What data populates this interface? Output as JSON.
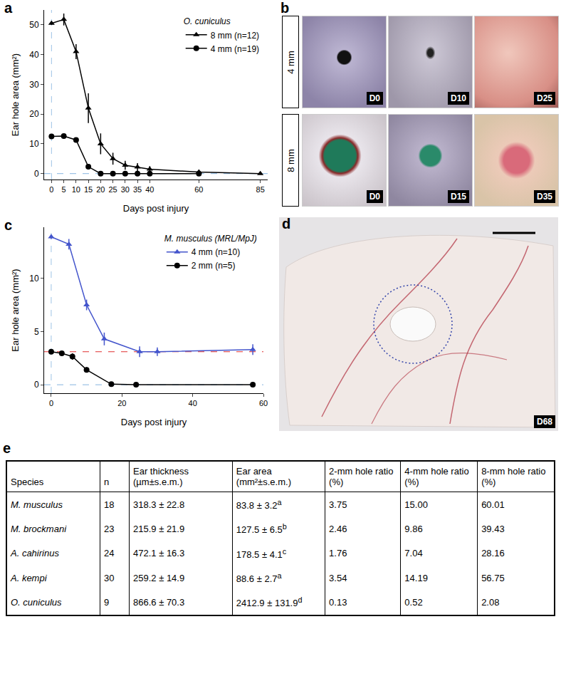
{
  "chart_data": [
    {
      "label": "a",
      "type": "line",
      "legend_title": "O. cuniculus",
      "x_label": "Days post injury",
      "y_label": "Ear hole area (mm²)",
      "xlim": [
        -3,
        88
      ],
      "xticks": [
        0,
        5,
        10,
        15,
        20,
        25,
        30,
        35,
        40,
        60,
        85
      ],
      "ylim": [
        -2,
        55
      ],
      "yticks": [
        0,
        10,
        20,
        30,
        40,
        50
      ],
      "grid": false,
      "legend": "top right",
      "reference_lines": [
        {
          "axis": "x",
          "value": 0,
          "color": "#9ec3e6",
          "line_style": "dash"
        },
        {
          "axis": "y",
          "value": 0,
          "color": "#9ec3e6",
          "line_style": "dash"
        }
      ],
      "series": [
        {
          "name": "8 mm (n=12)",
          "color": "#000000",
          "marker": "triangle-up",
          "x": [
            0,
            5,
            10,
            15,
            20,
            25,
            30,
            35,
            40,
            60,
            85
          ],
          "values": [
            50.5,
            51.8,
            41,
            22,
            10,
            5,
            2.8,
            2.2,
            1.5,
            0.5,
            0
          ],
          "errors": [
            0.5,
            2,
            2.5,
            5,
            3.5,
            2,
            1.5,
            1.3,
            1,
            0.3,
            0
          ]
        },
        {
          "name": "4 mm (n=19)",
          "color": "#000000",
          "marker": "circle",
          "x": [
            0,
            5,
            10,
            15,
            20,
            25,
            30,
            35,
            40,
            60
          ],
          "values": [
            12.5,
            12.6,
            11.3,
            2.3,
            0,
            0,
            0,
            0,
            0,
            0
          ],
          "errors": [
            0.3,
            0.4,
            0.5,
            0.8,
            0,
            0,
            0,
            0,
            0,
            0
          ]
        }
      ]
    },
    {
      "label": "c",
      "type": "line",
      "legend_title": "M. musculus (MRL/MpJ)",
      "x_label": "Days post injury",
      "y_label": "Ear hole area (mm²)",
      "xlim": [
        -2,
        60
      ],
      "xticks": [
        0,
        20,
        40,
        60
      ],
      "ylim": [
        -0.8,
        14.8
      ],
      "yticks": [
        0,
        5,
        10
      ],
      "grid": false,
      "legend": "top right",
      "reference_lines": [
        {
          "axis": "x",
          "value": 0,
          "color": "#9ec3e6",
          "line_style": "dash"
        },
        {
          "axis": "y",
          "value": 0,
          "color": "#9ec3e6",
          "line_style": "dash"
        },
        {
          "axis": "y",
          "value": 3.1,
          "color": "#e03030",
          "line_style": "dash"
        }
      ],
      "series": [
        {
          "name": "4 mm (n=10)",
          "color": "#4455cc",
          "marker": "triangle-up",
          "x": [
            0,
            5,
            10,
            15,
            25,
            30,
            57
          ],
          "values": [
            13.9,
            13.2,
            7.5,
            4.3,
            3.1,
            3.1,
            3.3
          ],
          "errors": [
            0.2,
            0.5,
            0.5,
            0.6,
            0.5,
            0.4,
            0.5
          ]
        },
        {
          "name": "2 mm (n=5)",
          "color": "#000000",
          "marker": "circle",
          "x": [
            0,
            3,
            6,
            10,
            17,
            24,
            57
          ],
          "values": [
            3.1,
            2.95,
            2.65,
            1.4,
            0.05,
            0,
            0
          ],
          "errors": [
            0.1,
            0.1,
            0.3,
            0.25,
            0.05,
            0,
            0
          ]
        }
      ]
    }
  ],
  "photos": {
    "label": "b",
    "rows": [
      {
        "label": "4 mm",
        "days": [
          "D0",
          "D10",
          "D25"
        ]
      },
      {
        "label": "8 mm",
        "days": [
          "D0",
          "D15",
          "D35"
        ]
      }
    ]
  },
  "photo_d": {
    "label": "d",
    "day": "D68"
  },
  "table": {
    "label": "e",
    "columns": [
      "Species",
      "n",
      "Ear thickness (µm±s.e.m.)",
      "Ear area (mm²±s.e.m.)",
      "2-mm hole ratio (%)",
      "4-mm hole ratio (%)",
      "8-mm hole ratio (%)"
    ],
    "rows": [
      [
        "M. musculus",
        "18",
        "318.3 ± 22.8",
        {
          "text": "83.8 ± 3.2",
          "sup": "a"
        },
        "3.75",
        "15.00",
        "60.01"
      ],
      [
        "M. brockmani",
        "23",
        "215.9 ± 21.9",
        {
          "text": "127.5 ± 6.5",
          "sup": "b"
        },
        "2.46",
        "9.86",
        "39.43"
      ],
      [
        "A. cahirinus",
        "24",
        "472.1 ± 16.3",
        {
          "text": "178.5 ± 4.1",
          "sup": "c"
        },
        "1.76",
        "7.04",
        "28.16"
      ],
      [
        "A. kempi",
        "30",
        "259.2 ± 14.9",
        {
          "text": "88.6 ± 2.7",
          "sup": "a"
        },
        "3.54",
        "14.19",
        "56.75"
      ],
      [
        "O. cuniculus",
        "9",
        "866.6 ± 70.3",
        {
          "text": "2412.9 ± 131.9",
          "sup": "d"
        },
        "0.13",
        "0.52",
        "2.08"
      ]
    ]
  }
}
